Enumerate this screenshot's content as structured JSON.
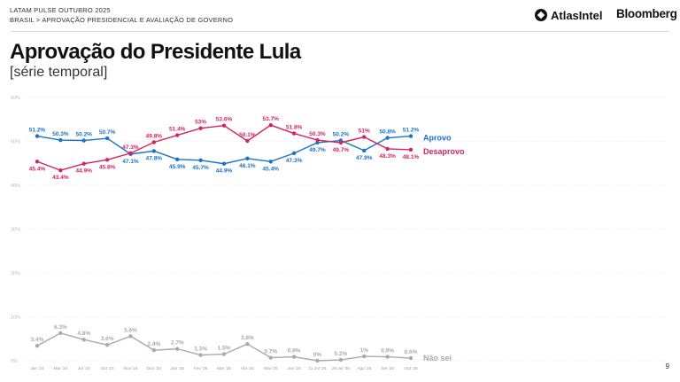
{
  "header": {
    "line1": "LATAM PULSE OUTUBRO 2025",
    "line2": "BRASIL > APROVAÇÃO PRESIDENCIAL E AVALIAÇÃO DE GOVERNO"
  },
  "logos": {
    "atlas": "AtlasIntel",
    "bloomberg": "Bloomberg"
  },
  "title": "Aprovação do Presidente Lula",
  "subtitle": "[série temporal]",
  "page_number": "9",
  "colors": {
    "approve": "#1a73c9",
    "disapprove": "#d6235e",
    "unsure": "#aaaaaa",
    "grid": "#e5e5e5"
  },
  "chart_data": {
    "type": "line",
    "x": [
      "Jan '24",
      "Mar '24",
      "Jul '24",
      "Out '24",
      "Nov '24",
      "Dez '24",
      "Jan '25",
      "Fev '25",
      "Mar '25",
      "Abr '25",
      "Mai '25",
      "Jun '25",
      "11 Jul '25",
      "28 Jul '25",
      "Ago '25",
      "Set '25",
      "Out '25"
    ],
    "y_ticks": [
      "0%",
      "10%",
      "20%",
      "30%",
      "40%",
      "50%",
      "60%"
    ],
    "ylim": [
      0,
      60
    ],
    "grid": true,
    "series": [
      {
        "name": "Aprovo",
        "values": [
          51.2,
          50.3,
          50.2,
          50.7,
          47.1,
          47.8,
          45.9,
          45.7,
          44.9,
          46.1,
          45.4,
          47.3,
          49.7,
          50.2,
          47.9,
          50.8,
          51.2
        ],
        "labels": [
          "51.2%",
          "50.3%",
          "50.2%",
          "50.7%",
          "47.1%",
          "47.8%",
          "45.9%",
          "45.7%",
          "44.9%",
          "46.1%",
          "45.4%",
          "47.3%",
          "49.7%",
          "50.2%",
          "47.9%",
          "50.8%",
          "51.2%"
        ]
      },
      {
        "name": "Desaprovo",
        "values": [
          45.4,
          43.4,
          44.9,
          45.8,
          47.3,
          49.8,
          51.4,
          53,
          53.6,
          50.1,
          53.7,
          51.8,
          50.3,
          49.7,
          51,
          48.3,
          48.1
        ],
        "labels": [
          "45.4%",
          "43.4%",
          "44.9%",
          "45.8%",
          "47.3%",
          "49.8%",
          "51.4%",
          "53%",
          "53.6%",
          "50.1%",
          "53.7%",
          "51.8%",
          "50.3%",
          "49.7%",
          "51%",
          "48.3%",
          "48.1%"
        ]
      },
      {
        "name": "Não sei",
        "values": [
          3.4,
          6.3,
          4.8,
          3.6,
          5.6,
          2.4,
          2.7,
          1.3,
          1.5,
          3.8,
          0.7,
          0.9,
          0,
          0.2,
          1,
          0.9,
          0.6
        ],
        "labels": [
          "3.4%",
          "6.3%",
          "4.8%",
          "3.6%",
          "5.6%",
          "2.4%",
          "2.7%",
          "1.3%",
          "1.5%",
          "3.8%",
          "0.7%",
          "0.9%",
          "0%",
          "0.2%",
          "1%",
          "0.9%",
          "0.6%"
        ]
      }
    ]
  }
}
